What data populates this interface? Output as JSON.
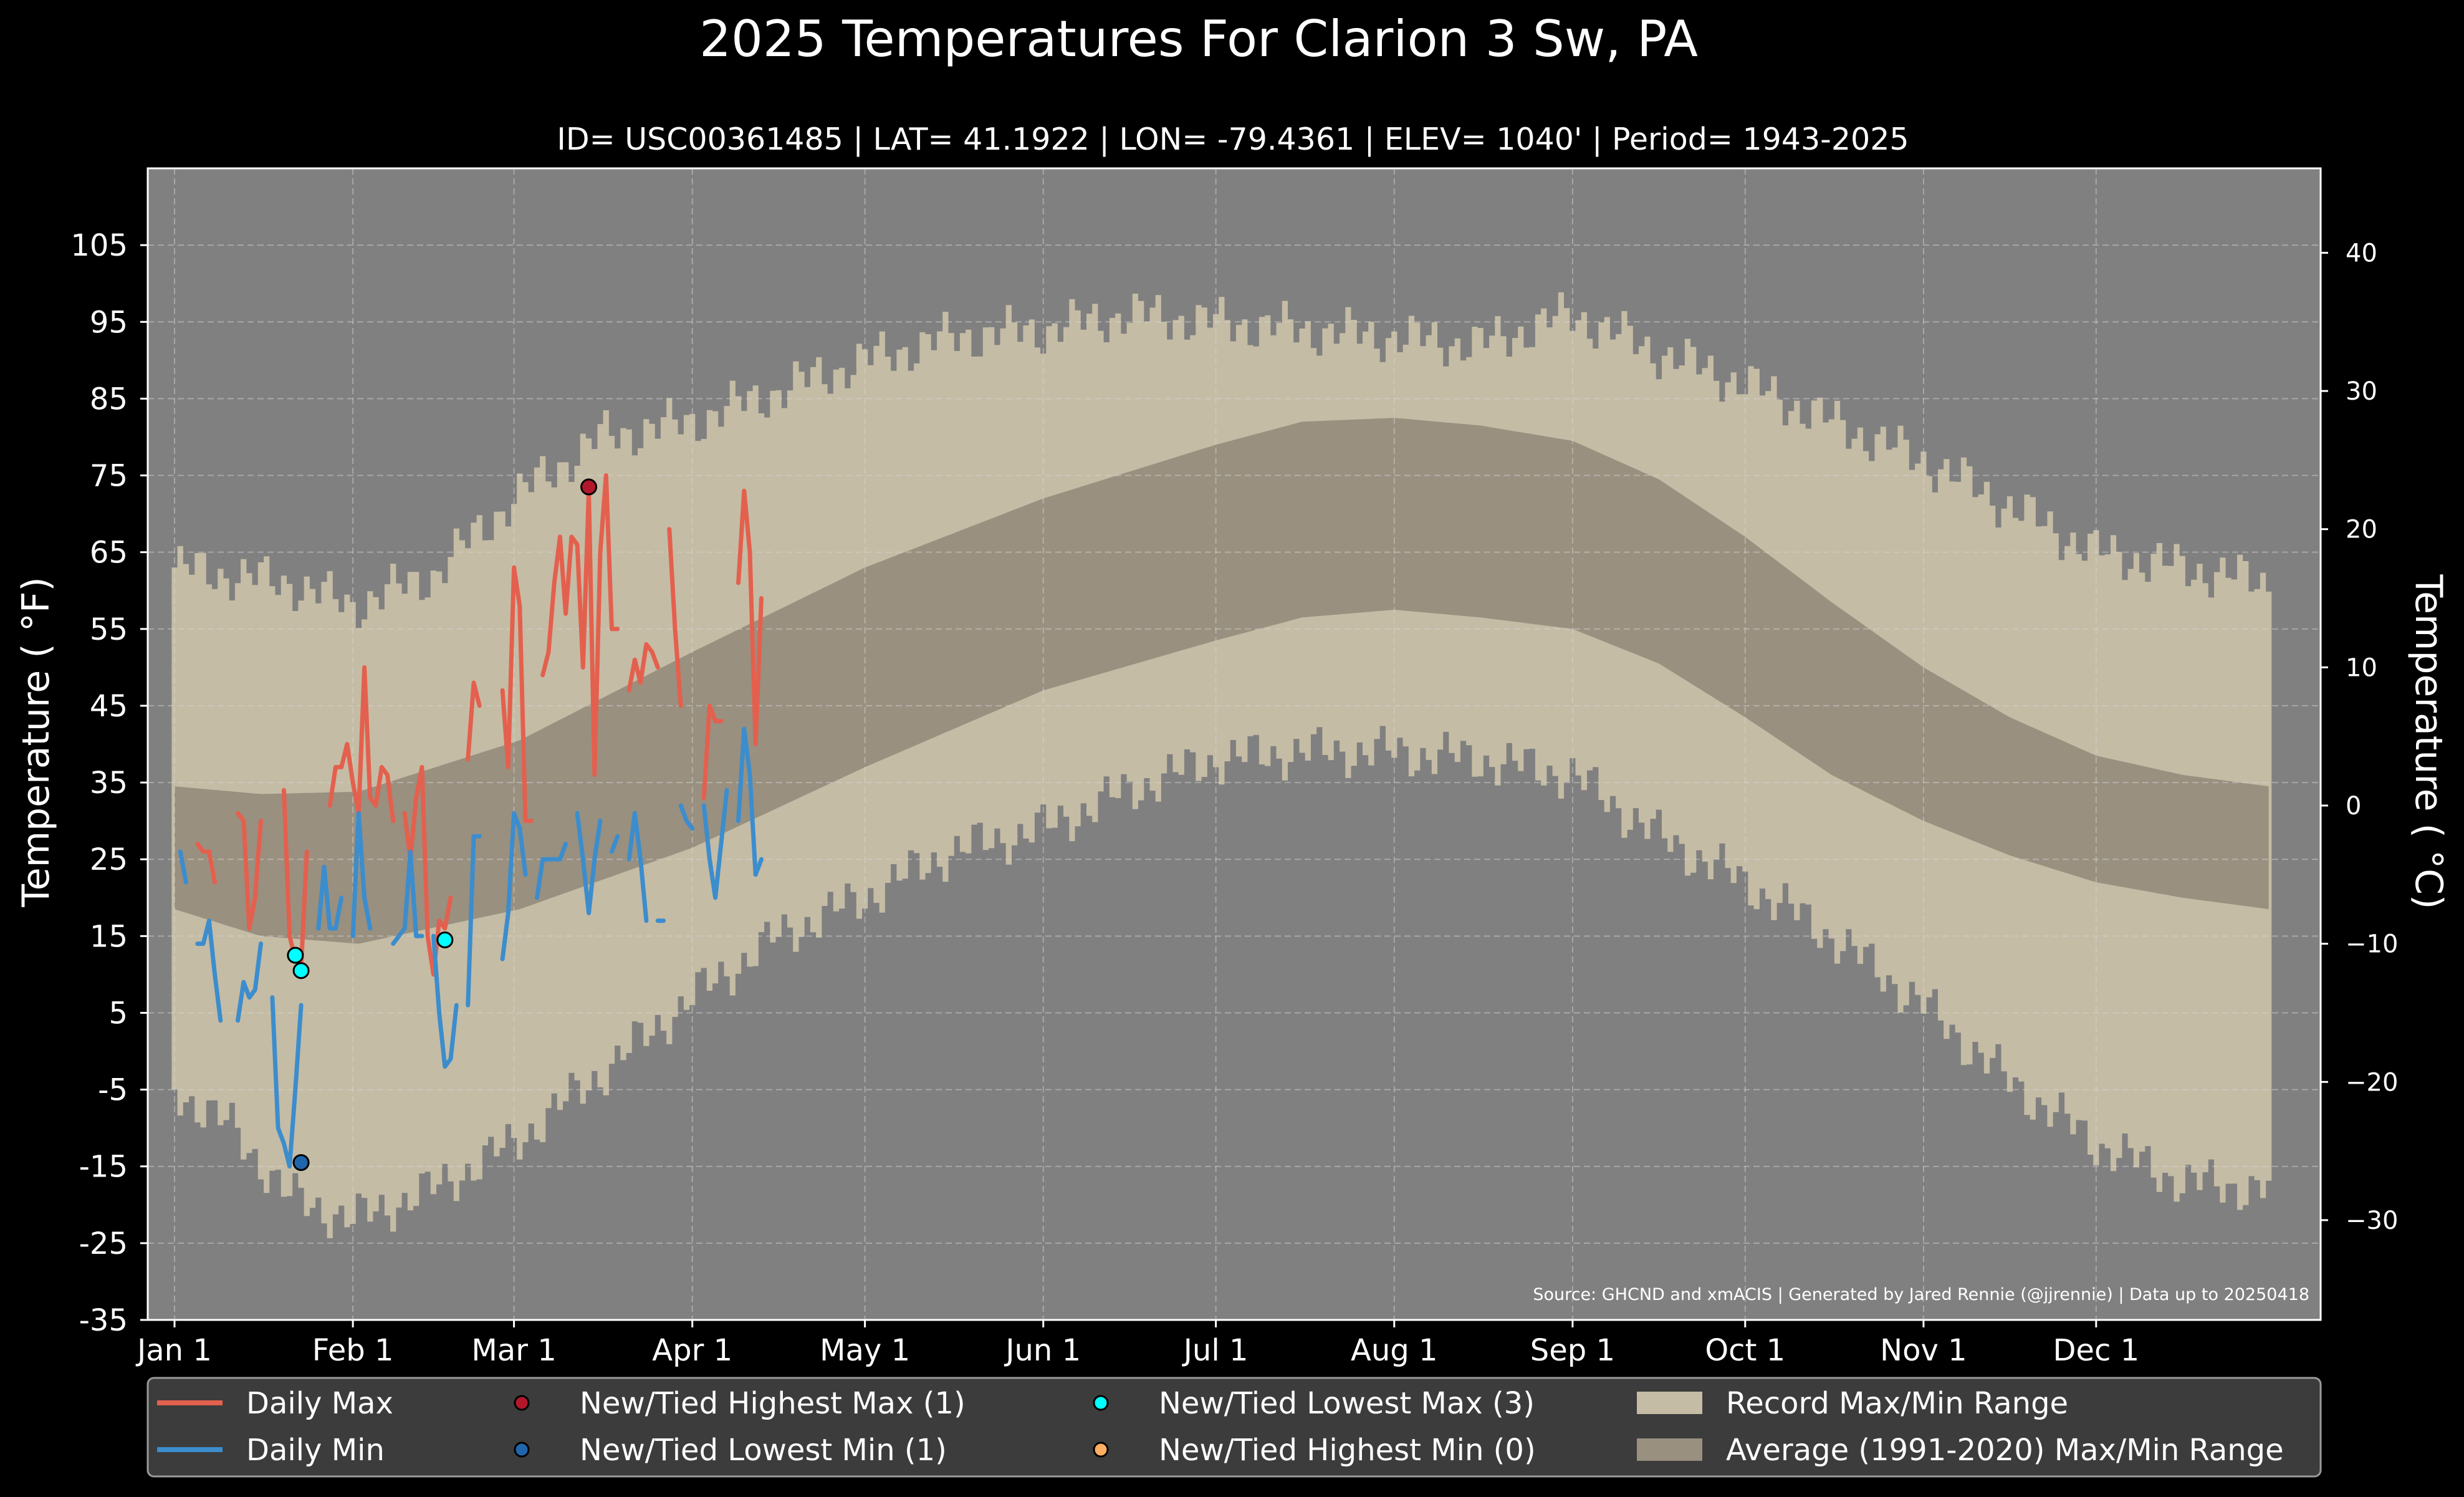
{
  "chart_data": {
    "type": "line",
    "title": "2025 Temperatures For Clarion 3 Sw, PA",
    "subtitle": "ID= USC00361485 | LAT= 41.1922 | LON= -79.4361 | ELEV= 1040' | Period= 1943-2025",
    "ylabel": "Temperature ( $^\\circ$F)",
    "ylabel_display": "Temperature ( °F)",
    "y2label_display": "Temperature ( °C)",
    "xlabel": "",
    "source": "Source: GHCND and xmACIS | Generated by Jared Rennie (@jjrennie) | Data up to 20250418",
    "ylim": [
      -35,
      115
    ],
    "y_ticks": [
      105,
      95,
      85,
      75,
      65,
      55,
      45,
      35,
      25,
      15,
      5,
      -5,
      -15,
      -25,
      -35
    ],
    "y_tick_labels": [
      "105",
      "95",
      "85",
      "75",
      "65",
      "55",
      "45",
      "35",
      "25",
      "15",
      "5",
      "-5",
      "-15",
      "-25",
      "-35"
    ],
    "y2_ticks": [
      40,
      30,
      20,
      10,
      0,
      -10,
      -20,
      -30
    ],
    "y2_tick_labels": [
      "40",
      "30",
      "20",
      "10",
      "0",
      "−10",
      "−20",
      "−30"
    ],
    "x_ticks_doy": [
      0,
      31,
      59,
      90,
      120,
      151,
      181,
      212,
      243,
      273,
      304,
      334
    ],
    "x_tick_labels": [
      "Jan 1",
      "Feb 1",
      "Mar 1",
      "Apr 1",
      "May 1",
      "Jun 1",
      "Jul 1",
      "Aug 1",
      "Sep 1",
      "Oct 1",
      "Nov 1",
      "Dec 1"
    ],
    "grid": true,
    "colors": {
      "figure_bg": "#000000",
      "plot_bg": "#808080",
      "record_range": "#c5bca5",
      "normal_range": "#999080",
      "daily_max": "#e4604e",
      "daily_min": "#3c8dcd",
      "highest_max": "#b2182b",
      "lowest_min": "#2166ac",
      "lowest_max": "#00ffff",
      "highest_min": "#fdae61",
      "legend_bg": "#3c3c3c"
    },
    "normal_range": {
      "description": "Average (1991-2020) Max/Min Range, key days",
      "x_doy": [
        0,
        15,
        32,
        60,
        90,
        120,
        151,
        181,
        196,
        212,
        227,
        243,
        258,
        273,
        288,
        304,
        319,
        334,
        349,
        364
      ],
      "max": [
        34.5,
        33.5,
        33.8,
        40.5,
        52,
        63,
        72,
        79,
        82,
        82.5,
        81.5,
        79.5,
        74.5,
        67,
        58.5,
        50,
        43.5,
        38.5,
        36,
        34.5
      ],
      "min": [
        18.5,
        15,
        14,
        18.5,
        26.5,
        37,
        47,
        53.5,
        56.5,
        57.5,
        56.5,
        55,
        50.5,
        43.5,
        36,
        30,
        25.5,
        22,
        20,
        18.5
      ]
    },
    "record_range": {
      "description": "Record Max/Min Range, key days (approximate envelope)",
      "x_doy": [
        0,
        10,
        20,
        31,
        45,
        59,
        74,
        90,
        105,
        120,
        135,
        151,
        166,
        181,
        196,
        212,
        227,
        243,
        258,
        273,
        288,
        304,
        319,
        334,
        349,
        364
      ],
      "max": [
        63,
        62,
        61,
        58,
        62,
        72,
        80,
        82,
        86,
        90,
        93,
        94,
        96,
        95,
        94,
        93,
        92,
        96,
        91,
        87,
        82,
        77,
        71,
        65,
        63,
        61
      ],
      "min": [
        -5,
        -10,
        -19,
        -22,
        -18,
        -12,
        -3,
        7,
        15,
        20,
        26,
        29,
        34,
        38,
        39,
        39,
        38,
        36,
        28,
        22,
        15,
        6,
        -4,
        -12,
        -17,
        -18
      ]
    },
    "series": [
      {
        "name": "Daily Max",
        "segments": [
          {
            "x": [
              4,
              5,
              6,
              7
            ],
            "y": [
              27,
              26,
              26,
              22
            ]
          },
          {
            "x": [
              11,
              12,
              13,
              14,
              15
            ],
            "y": [
              31,
              30,
              16,
              20,
              30
            ]
          },
          {
            "x": [
              19,
              20,
              21,
              22,
              23
            ],
            "y": [
              34,
              15,
              12,
              11,
              26
            ]
          },
          {
            "x": [
              27,
              28,
              29,
              30,
              31,
              32,
              33,
              34,
              35,
              36,
              37,
              38
            ],
            "y": [
              32,
              37,
              37,
              40,
              35,
              31,
              50,
              33,
              32,
              37,
              36,
              30
            ]
          },
          {
            "x": [
              40,
              41,
              42,
              43,
              44,
              45,
              46,
              47,
              48
            ],
            "y": [
              31,
              25,
              33,
              37,
              15,
              10,
              17,
              16,
              20
            ]
          },
          {
            "x": [
              51,
              52,
              53
            ],
            "y": [
              38,
              48,
              45
            ]
          },
          {
            "x": [
              57,
              58,
              59,
              60,
              61,
              62
            ],
            "y": [
              47,
              37,
              63,
              58,
              30,
              30
            ]
          },
          {
            "x": [
              64,
              65,
              66,
              67,
              68,
              69,
              70,
              71,
              72,
              73,
              74,
              75,
              76,
              77
            ],
            "y": [
              49,
              52,
              61,
              67,
              57,
              67,
              66,
              50,
              73,
              36,
              65,
              75,
              55,
              55
            ]
          },
          {
            "x": [
              79,
              80,
              81,
              82,
              83,
              84
            ],
            "y": [
              47,
              51,
              48,
              53,
              52,
              50
            ]
          },
          {
            "x": [
              86,
              87,
              88
            ],
            "y": [
              68,
              55,
              45
            ]
          },
          {
            "x": [
              92,
              93,
              94,
              95
            ],
            "y": [
              33,
              45,
              43,
              43
            ]
          },
          {
            "x": [
              98,
              99,
              100,
              101,
              102
            ],
            "y": [
              61,
              73,
              65,
              40,
              59
            ]
          }
        ]
      },
      {
        "name": "Daily Min",
        "segments": [
          {
            "x": [
              1,
              2
            ],
            "y": [
              26,
              22
            ]
          },
          {
            "x": [
              4,
              5,
              6,
              7,
              8
            ],
            "y": [
              14,
              14,
              17,
              10,
              4
            ]
          },
          {
            "x": [
              11,
              12,
              13,
              14,
              15
            ],
            "y": [
              4,
              9,
              7,
              8,
              14
            ]
          },
          {
            "x": [
              17,
              18,
              19,
              20,
              21,
              22
            ],
            "y": [
              7,
              -10,
              -12,
              -15,
              -5,
              6
            ]
          },
          {
            "x": [
              25,
              26,
              27,
              28,
              29
            ],
            "y": [
              16,
              24,
              16,
              16,
              20
            ]
          },
          {
            "x": [
              31,
              32,
              33,
              34
            ],
            "y": [
              15,
              31,
              20,
              16
            ]
          },
          {
            "x": [
              38,
              39,
              40,
              41,
              42,
              43
            ],
            "y": [
              14,
              15,
              16,
              26,
              15,
              15
            ]
          },
          {
            "x": [
              45,
              46,
              47,
              48,
              49
            ],
            "y": [
              15,
              5,
              -2,
              -1,
              6
            ]
          },
          {
            "x": [
              51,
              52,
              53
            ],
            "y": [
              6,
              28,
              28
            ]
          },
          {
            "x": [
              57,
              58,
              59,
              60,
              61
            ],
            "y": [
              12,
              18,
              31,
              29,
              23
            ]
          },
          {
            "x": [
              63,
              64,
              65,
              66,
              67,
              68
            ],
            "y": [
              20,
              25,
              25,
              25,
              25,
              27
            ]
          },
          {
            "x": [
              70,
              71,
              72,
              73,
              74
            ],
            "y": [
              31,
              25,
              18,
              25,
              30
            ]
          },
          {
            "x": [
              76,
              77
            ],
            "y": [
              26,
              28
            ]
          },
          {
            "x": [
              79,
              80,
              81,
              82
            ],
            "y": [
              25,
              31,
              25,
              17
            ]
          },
          {
            "x": [
              84,
              85
            ],
            "y": [
              17,
              17
            ]
          },
          {
            "x": [
              88,
              89,
              90
            ],
            "y": [
              32,
              30,
              29
            ]
          },
          {
            "x": [
              92,
              93,
              94,
              95,
              96
            ],
            "y": [
              32,
              25,
              20,
              27,
              34
            ]
          },
          {
            "x": [
              98,
              99,
              100,
              101,
              102
            ],
            "y": [
              30,
              42,
              36,
              23,
              25
            ]
          }
        ]
      }
    ],
    "markers": [
      {
        "name": "New/Tied Highest Max (1)",
        "color": "#b2182b",
        "points": [
          {
            "x": 72,
            "y": 73.5
          }
        ]
      },
      {
        "name": "New/Tied Lowest Min (1)",
        "color": "#2166ac",
        "points": [
          {
            "x": 22,
            "y": -14.5
          }
        ]
      },
      {
        "name": "New/Tied Lowest Max (3)",
        "color": "#00ffff",
        "points": [
          {
            "x": 21,
            "y": 12.5
          },
          {
            "x": 22,
            "y": 10.5
          },
          {
            "x": 47,
            "y": 14.5
          }
        ]
      },
      {
        "name": "New/Tied Highest Min (0)",
        "color": "#fdae61",
        "points": []
      }
    ],
    "legend": {
      "placement": "bottom",
      "entries": [
        {
          "label": "Daily Max",
          "kind": "line",
          "color": "#e4604e"
        },
        {
          "label": "New/Tied Highest Max (1)",
          "kind": "marker",
          "color": "#b2182b"
        },
        {
          "label": "New/Tied Lowest Max (3)",
          "kind": "marker",
          "color": "#00ffff"
        },
        {
          "label": "Record Max/Min Range",
          "kind": "patch",
          "color": "#c5bca5"
        },
        {
          "label": "Daily Min",
          "kind": "line",
          "color": "#3c8dcd"
        },
        {
          "label": "New/Tied Lowest Min (1)",
          "kind": "marker",
          "color": "#2166ac"
        },
        {
          "label": "New/Tied Highest Min (0)",
          "kind": "marker",
          "color": "#fdae61"
        },
        {
          "label": "Average (1991-2020) Max/Min Range",
          "kind": "patch",
          "color": "#999080"
        }
      ]
    }
  }
}
